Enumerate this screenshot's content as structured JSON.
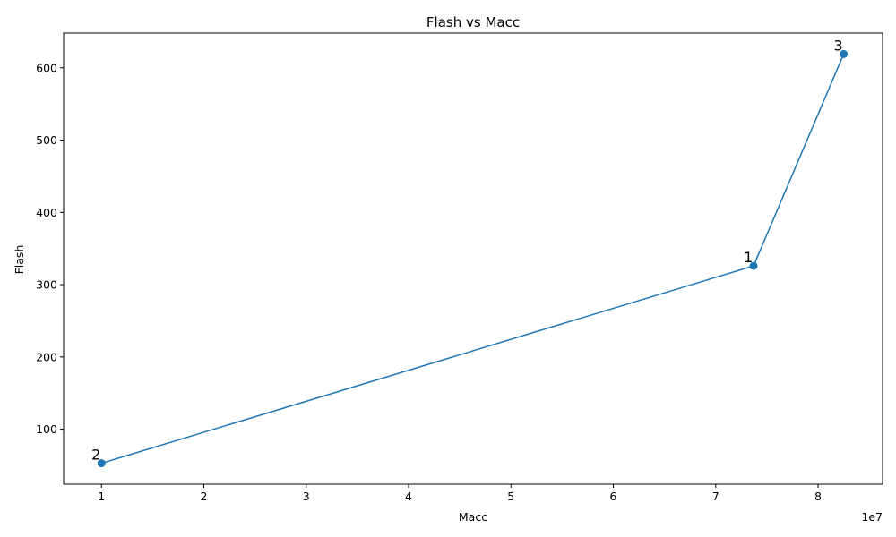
{
  "chart_data": {
    "type": "line",
    "title": "Flash vs Macc",
    "xlabel": "Macc",
    "ylabel": "Flash",
    "x_offset_label": "1e7",
    "x_scale": 10000000,
    "xlim": [
      6300000,
      86300000
    ],
    "ylim": [
      24,
      648
    ],
    "xticks": [
      1,
      2,
      3,
      4,
      5,
      6,
      7,
      8
    ],
    "yticks": [
      100,
      200,
      300,
      400,
      500,
      600
    ],
    "grid": false,
    "color": "#1f77b4",
    "series": [
      {
        "points": [
          {
            "label": "2",
            "x": 10000000,
            "y": 53
          },
          {
            "label": "1",
            "x": 73700000,
            "y": 326
          },
          {
            "label": "3",
            "x": 82500000,
            "y": 619
          }
        ]
      }
    ]
  }
}
